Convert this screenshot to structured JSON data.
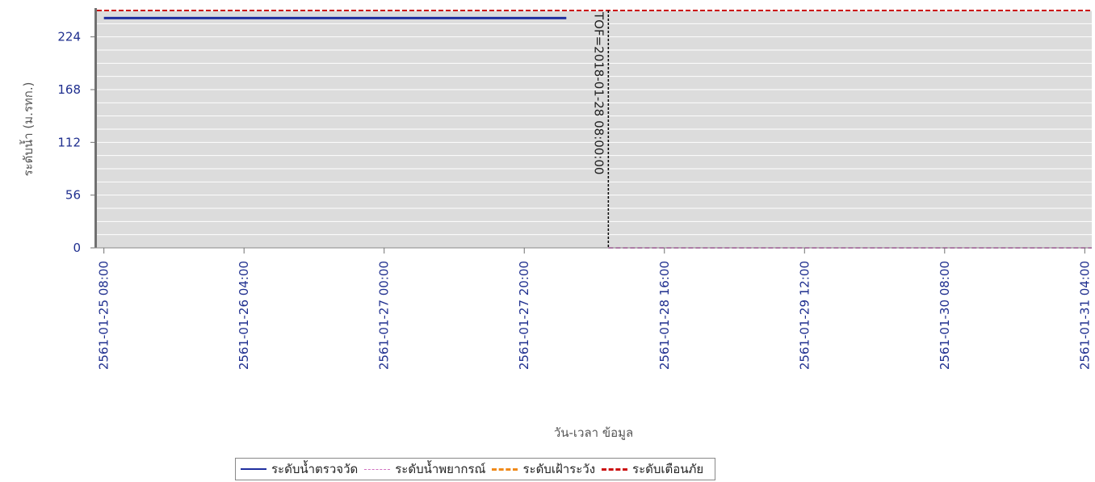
{
  "chart_data": {
    "type": "line",
    "xlabel": "วัน-เวลา ข้อมูล",
    "ylabel": "ระดับน้ำ (ม.รทก.)",
    "ylim": [
      0,
      252
    ],
    "yticks": [
      0,
      56,
      112,
      168,
      224
    ],
    "xlim": [
      "2561-01-25 07:00",
      "2561-01-31 05:00"
    ],
    "xticks": [
      "2561-01-25 08:00",
      "2561-01-26 04:00",
      "2561-01-27 00:00",
      "2561-01-27 20:00",
      "2561-01-28 16:00",
      "2561-01-29 12:00",
      "2561-01-30 08:00",
      "2561-01-31 04:00"
    ],
    "grid": true,
    "legend_position": "bottom",
    "series": [
      {
        "name": "ระดับน้ำตรวจวัด",
        "style": "solid",
        "color": "#1f2f9f",
        "points": [
          [
            "2561-01-25 08:00",
            244
          ],
          [
            "2561-01-28 02:00",
            244
          ]
        ]
      },
      {
        "name": "ระดับน้ำพยากรณ์",
        "style": "dashed",
        "color": "#d070c0",
        "points": [
          [
            "2561-01-28 08:00",
            0
          ],
          [
            "2561-01-31 05:00",
            0
          ]
        ]
      },
      {
        "name": "ระดับเฝ้าระวัง",
        "style": "dashed",
        "color": "#f08a1a",
        "points": []
      },
      {
        "name": "ระดับเตือนภัย",
        "style": "dashed",
        "color": "#cc1111",
        "points": [
          [
            "2561-01-25 07:00",
            252
          ],
          [
            "2561-01-31 05:00",
            252
          ]
        ]
      }
    ],
    "annotations": [
      {
        "text": "TOF=2018-01-28 08:00:00",
        "x": "2561-01-28 08:00"
      }
    ]
  }
}
